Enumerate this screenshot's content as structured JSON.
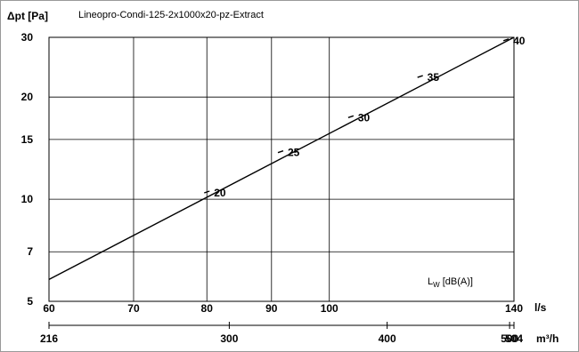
{
  "chart_data": {
    "type": "line",
    "title": "Lineopro-Condi-125-2x1000x20-pz-Extract",
    "ylabel": "Δpt [Pa]",
    "x_unit": "l/s",
    "x2_unit": "m³/h",
    "y_scale": "log",
    "x_scale": "log",
    "grid": true,
    "xlim": [
      60,
      140
    ],
    "ylim": [
      5,
      30
    ],
    "x_ticks": [
      60,
      70,
      80,
      90,
      100,
      140
    ],
    "x_tick_labels": [
      "60",
      "70",
      "80",
      "90",
      "100",
      "140"
    ],
    "x2_ticks": [
      216,
      300,
      400,
      500,
      504
    ],
    "x2_tick_labels": [
      "216",
      "300",
      "400",
      "500",
      "504"
    ],
    "y_ticks": [
      5,
      7,
      10,
      15,
      20,
      30
    ],
    "y_tick_labels": [
      "5",
      "7",
      "10",
      "15",
      "20",
      "30"
    ],
    "series": [
      {
        "x": [
          60,
          140
        ],
        "y": [
          5.8,
          30
        ]
      }
    ],
    "sound_label_prefix": "L",
    "sound_label_sub": "W",
    "sound_label_suffix": " [dB(A)]",
    "sound_marks": [
      {
        "x": 80,
        "y": 10.5,
        "label": "20"
      },
      {
        "x": 91.5,
        "y": 13.8,
        "label": "25"
      },
      {
        "x": 104,
        "y": 17.5,
        "label": "30"
      },
      {
        "x": 118,
        "y": 23,
        "label": "35"
      },
      {
        "x": 138,
        "y": 29.5,
        "label": "40"
      }
    ]
  }
}
